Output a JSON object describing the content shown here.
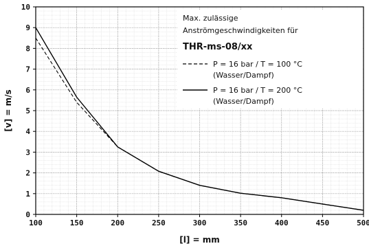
{
  "chart_data": {
    "type": "line",
    "title": "",
    "xlabel": "[l] = mm",
    "ylabel": "[v] = m/s",
    "xlim": [
      100,
      500
    ],
    "ylim": [
      0,
      10
    ],
    "x_ticks": [
      100,
      150,
      200,
      250,
      300,
      350,
      400,
      450,
      500
    ],
    "y_ticks": [
      0,
      1,
      2,
      3,
      4,
      5,
      6,
      7,
      8,
      9,
      10
    ],
    "grid": true,
    "legend": {
      "placement": "top-right",
      "heading_line1": "Max. zulässige",
      "heading_line2": "Anströmgeschwindigkeiten für",
      "model": "THR-ms-08/xx"
    },
    "series": [
      {
        "label_line1": "P =  16 bar  /  T = 100 °C",
        "label_line2": "(Wasser/Dampf)",
        "style": "dashed",
        "x": [
          100,
          150,
          200,
          250,
          300,
          350,
          400,
          450,
          500
        ],
        "y": [
          8.5,
          5.4,
          3.25,
          2.08,
          1.4,
          1.02,
          0.8,
          0.5,
          0.2
        ]
      },
      {
        "label_line1": "P =  16 bar  /  T = 200 °C",
        "label_line2": "(Wasser/Dampf)",
        "style": "solid",
        "x": [
          100,
          150,
          200,
          250,
          300,
          350,
          400,
          450,
          500
        ],
        "y": [
          9.0,
          5.65,
          3.25,
          2.08,
          1.4,
          1.02,
          0.8,
          0.5,
          0.2
        ]
      }
    ]
  }
}
